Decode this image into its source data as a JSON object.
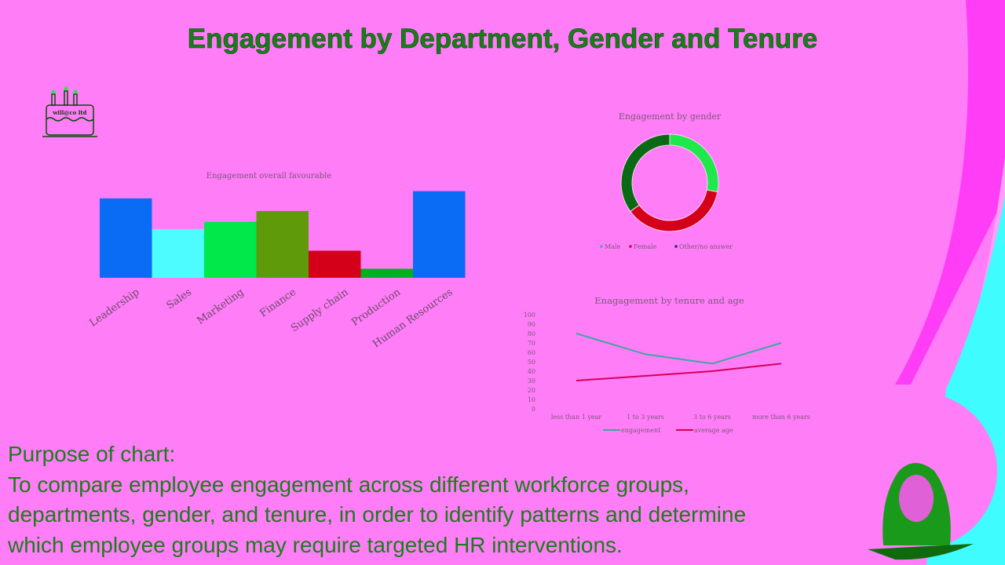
{
  "slide": {
    "title": "Engagement by Department, Gender and Tenure",
    "logo_text": "will@co ltd",
    "purpose_heading": "Purpose of chart:",
    "purpose_lines": [
      "To compare employee engagement across different workforce groups,",
      "departments, gender, and tenure, in order to identify patterns and determine",
      "which employee groups may require targeted HR interventions."
    ]
  },
  "chart_data": [
    {
      "type": "bar",
      "title": "Engagement overall favourable",
      "categories": [
        "Leadership",
        "Sales",
        "Marketing",
        "Finance",
        "Supply chain",
        "Production",
        "Human Resources"
      ],
      "values": [
        2.2,
        1.35,
        1.55,
        1.85,
        0.75,
        0.25,
        2.4
      ],
      "colors": [
        "#0a6cf5",
        "#4dfcff",
        "#00e84a",
        "#5f9a0a",
        "#d4001a",
        "#00b020",
        "#0a6cf5"
      ],
      "ylim": [
        0,
        2.5
      ],
      "grid": false
    },
    {
      "type": "pie",
      "title": "Engagement by gender",
      "labels": [
        "Male",
        "Female",
        "Other/no answer"
      ],
      "values": [
        28,
        37,
        35
      ],
      "slice_colors": [
        "#1ee84a",
        "#d4001a",
        "#0a6a14"
      ],
      "legend_colors": [
        "#4a9fd0",
        "#d4004a",
        "#1a2a8a"
      ],
      "legend": "bottom",
      "donut": true
    },
    {
      "type": "line",
      "title": "Enagagement by tenure and age",
      "categories": [
        "less than 1 year",
        "1 to 3 years",
        "3 to 6 years",
        "more than 6 years"
      ],
      "series": [
        {
          "name": "engagement",
          "values": [
            80,
            58,
            48,
            70
          ],
          "color": "#3aa8a0"
        },
        {
          "name": "average age",
          "values": [
            30,
            35,
            40,
            48
          ],
          "color": "#d4005a"
        }
      ],
      "ylim": [
        0,
        100
      ],
      "yticks": [
        0,
        10,
        20,
        30,
        40,
        50,
        60,
        70,
        80,
        90,
        100
      ],
      "legend": "bottom",
      "grid": false
    }
  ]
}
